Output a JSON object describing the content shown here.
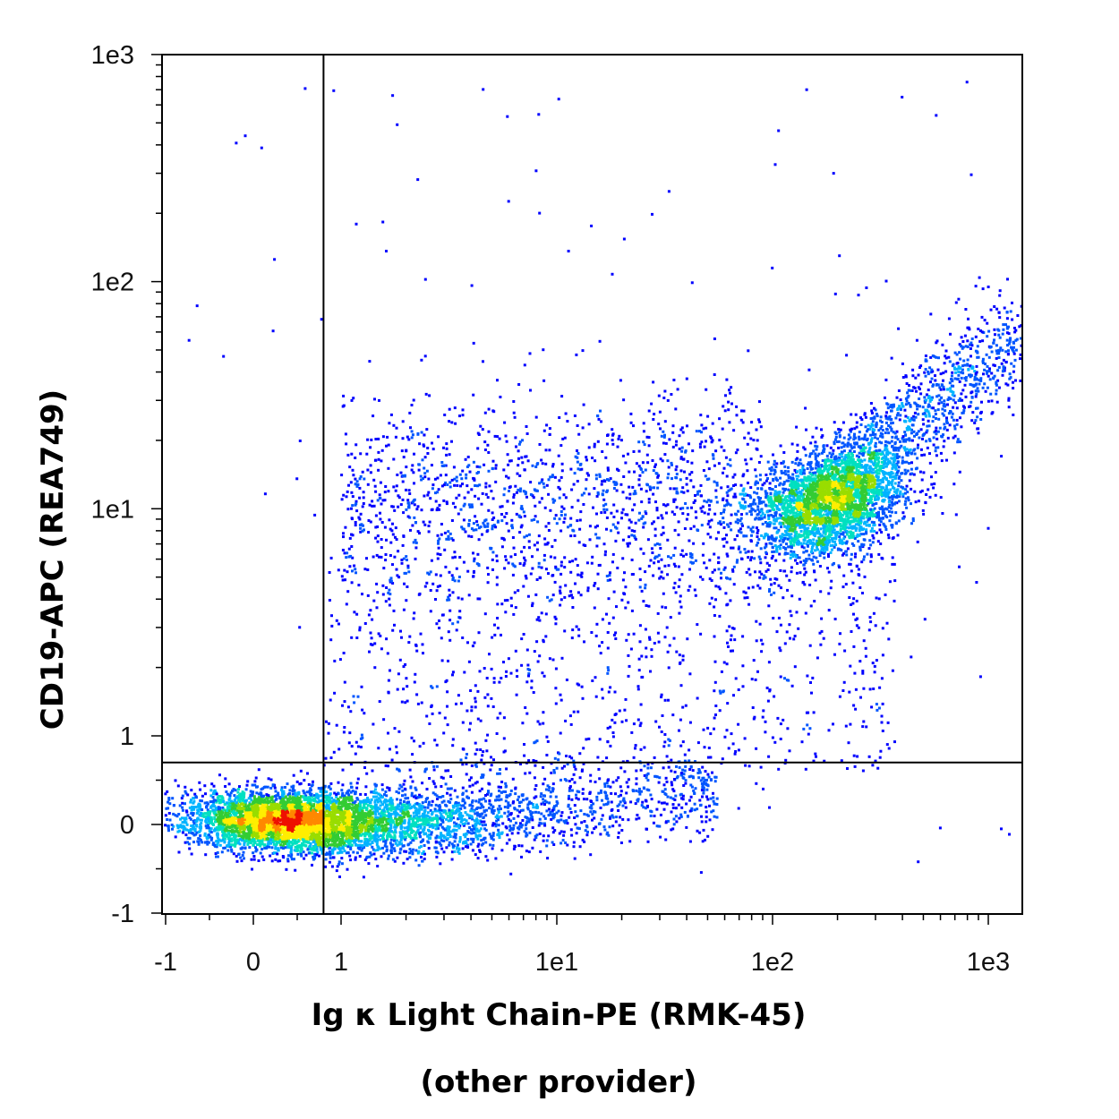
{
  "chart_data": {
    "type": "scatter",
    "style": "flow cytometry density dot plot (pseudocolor: blue low density, green/yellow/red high density)",
    "xlabel": "Ig κ Light Chain-PE (RMK-45)",
    "xlabel_sub": "(other provider)",
    "ylabel": "CD19-APC (REA749)",
    "x_scale": "biexponential (linear near zero, log above 1)",
    "y_scale": "biexponential (linear near zero, log above 1)",
    "xlim": [
      -1,
      1000
    ],
    "ylim": [
      -1,
      1000
    ],
    "x_ticks": [
      {
        "value": -1,
        "label": "-1"
      },
      {
        "value": 0,
        "label": "0"
      },
      {
        "value": 1,
        "label": "1"
      },
      {
        "value": 10,
        "label": "1e1"
      },
      {
        "value": 100,
        "label": "1e2"
      },
      {
        "value": 1000,
        "label": "1e3"
      }
    ],
    "y_ticks": [
      {
        "value": -1,
        "label": "-1"
      },
      {
        "value": 0,
        "label": "0"
      },
      {
        "value": 1,
        "label": "1"
      },
      {
        "value": 10,
        "label": "1e1"
      },
      {
        "value": 100,
        "label": "1e2"
      },
      {
        "value": 1000,
        "label": "1e3"
      }
    ],
    "gates": {
      "x_threshold": 0.8,
      "y_threshold": 0.7
    },
    "populations": [
      {
        "description": "CD19- / Ig κ- cells",
        "x_center": 0.3,
        "y_center": 0.05,
        "relative_size": 0.6
      },
      {
        "description": "CD19+ / Ig κ+ B cells",
        "x_center": 180,
        "y_center": 11,
        "relative_size": 0.3
      },
      {
        "description": "CD19+ / Ig κ- sparse events",
        "x_center": 10,
        "y_center": 10,
        "relative_size": 0.1
      }
    ],
    "density_colors": [
      "#0000ff",
      "#0055ff",
      "#00b3ff",
      "#00e0c0",
      "#33cc33",
      "#99dd00",
      "#ffee00",
      "#ff8800",
      "#ee1100"
    ],
    "grid": false,
    "legend": "none"
  }
}
